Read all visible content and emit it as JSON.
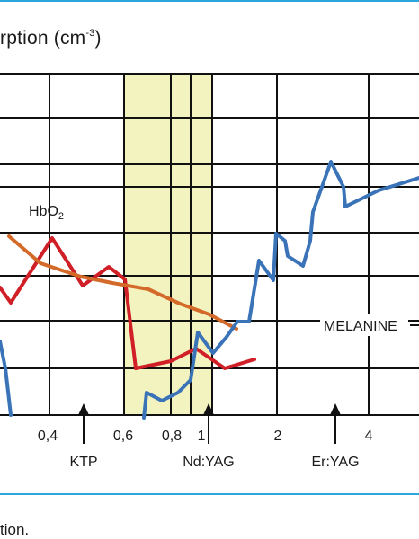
{
  "header_rule_color": "#2aa6dc",
  "footer_rule_color": "#2aa6dc",
  "title": {
    "text": "rption (cm",
    "sup": "-3",
    "close": ")"
  },
  "caption": "tion.",
  "chart_data": {
    "type": "line",
    "title": "rption (cm-3)",
    "x_ticks": [
      "0,4",
      "0,6",
      "0,8",
      "1",
      "2",
      "4"
    ],
    "highlight_band": {
      "color": "#f3f3c0"
    },
    "grid": true,
    "arrows": [
      "KTP",
      "Nd:YAG",
      "Er:YAG"
    ],
    "series": [
      {
        "name": "HbO2",
        "label_text": "HbO",
        "label_sub": "2",
        "color": "#d01f26",
        "points": [
          [
            -10,
            340
          ],
          [
            0,
            320
          ],
          [
            12,
            337
          ],
          [
            58,
            265
          ],
          [
            92,
            318
          ],
          [
            121,
            297
          ],
          [
            139,
            311
          ],
          [
            151,
            410
          ],
          [
            190,
            402
          ],
          [
            218,
            388
          ],
          [
            250,
            410
          ],
          [
            283,
            400
          ]
        ]
      },
      {
        "name": "orange",
        "color": "#d46a2a",
        "points": [
          [
            10,
            263
          ],
          [
            45,
            293
          ],
          [
            90,
            308
          ],
          [
            125,
            315
          ],
          [
            165,
            322
          ],
          [
            200,
            338
          ],
          [
            233,
            350
          ],
          [
            263,
            366
          ]
        ]
      },
      {
        "name": "MELANINE",
        "color": "#3a73b8",
        "points": [
          [
            160,
            465
          ],
          [
            163,
            437
          ],
          [
            180,
            446
          ],
          [
            198,
            437
          ],
          [
            212,
            423
          ],
          [
            220,
            370
          ],
          [
            237,
            393
          ],
          [
            252,
            375
          ],
          [
            264,
            358
          ],
          [
            277,
            358
          ],
          [
            288,
            290
          ],
          [
            304,
            312
          ],
          [
            307,
            260
          ],
          [
            317,
            268
          ],
          [
            320,
            285
          ],
          [
            337,
            296
          ],
          [
            345,
            268
          ],
          [
            348,
            236
          ],
          [
            368,
            180
          ],
          [
            382,
            208
          ],
          [
            384,
            230
          ],
          [
            421,
            212
          ],
          [
            466,
            198
          ]
        ]
      },
      {
        "name": "blue-left",
        "color": "#3a73b8",
        "points": [
          [
            0,
            380
          ],
          [
            6,
            410
          ],
          [
            12,
            462
          ]
        ]
      }
    ],
    "melanine_label": "MELANINE"
  }
}
